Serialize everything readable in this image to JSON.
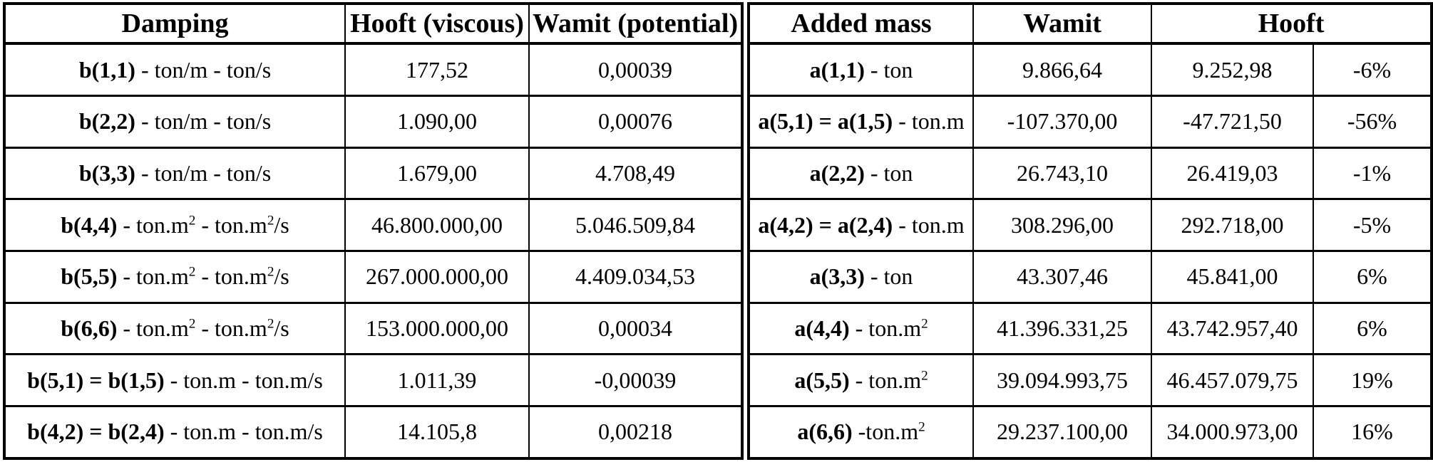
{
  "colors": {
    "background": "#ffffff",
    "border": "#000000",
    "text": "#000000"
  },
  "damping_table": {
    "headers": {
      "label": "Damping",
      "hooft": "Hooft (viscous)",
      "wamit": "Wamit (potential)"
    },
    "rows": [
      {
        "name": "b(1,1)",
        "unit": " - ton/m - ton/s",
        "hooft_viscous": "177,52",
        "wamit_potential": "0,00039"
      },
      {
        "name": "b(2,2)",
        "unit": " - ton/m - ton/s",
        "hooft_viscous": "1.090,00",
        "wamit_potential": "0,00076"
      },
      {
        "name": "b(3,3)",
        "unit": " - ton/m - ton/s",
        "hooft_viscous": "1.679,00",
        "wamit_potential": "4.708,49"
      },
      {
        "name": "b(4,4)",
        "unit": " - ton.m² - ton.m²/s",
        "hooft_viscous": "46.800.000,00",
        "wamit_potential": "5.046.509,84"
      },
      {
        "name": "b(5,5)",
        "unit": " - ton.m² - ton.m²/s",
        "hooft_viscous": "267.000.000,00",
        "wamit_potential": "4.409.034,53"
      },
      {
        "name": "b(6,6)",
        "unit": " - ton.m² - ton.m²/s",
        "hooft_viscous": "153.000.000,00",
        "wamit_potential": "0,00034"
      },
      {
        "name": "b(5,1) = b(1,5)",
        "unit": " - ton.m - ton.m/s",
        "hooft_viscous": "1.011,39",
        "wamit_potential": "-0,00039"
      },
      {
        "name": "b(4,2) = b(2,4)",
        "unit": " - ton.m - ton.m/s",
        "hooft_viscous": "14.105,8",
        "wamit_potential": "0,00218"
      }
    ]
  },
  "added_mass_table": {
    "headers": {
      "label": "Added mass",
      "wamit": "Wamit",
      "hooft": "Hooft"
    },
    "rows": [
      {
        "name": "a(1,1)",
        "unit": " - ton",
        "wamit": "9.866,64",
        "hooft": "9.252,98",
        "diff": "-6%"
      },
      {
        "name": "a(5,1) = a(1,5)",
        "unit": " - ton.m",
        "wamit": "-107.370,00",
        "hooft": "-47.721,50",
        "diff": "-56%"
      },
      {
        "name": "a(2,2)",
        "unit": " - ton",
        "wamit": "26.743,10",
        "hooft": "26.419,03",
        "diff": "-1%"
      },
      {
        "name": "a(4,2) = a(2,4)",
        "unit": " - ton.m",
        "wamit": "308.296,00",
        "hooft": "292.718,00",
        "diff": "-5%"
      },
      {
        "name": "a(3,3)",
        "unit": " - ton",
        "wamit": "43.307,46",
        "hooft": "45.841,00",
        "diff": "6%"
      },
      {
        "name": "a(4,4)",
        "unit": " - ton.m²",
        "wamit": "41.396.331,25",
        "hooft": "43.742.957,40",
        "diff": "6%"
      },
      {
        "name": "a(5,5)",
        "unit": " - ton.m²",
        "wamit": "39.094.993,75",
        "hooft": "46.457.079,75",
        "diff": "19%"
      },
      {
        "name": "a(6,6)",
        "unit": " -ton.m²",
        "wamit": "29.237.100,00",
        "hooft": "34.000.973,00",
        "diff": "16%"
      }
    ]
  }
}
